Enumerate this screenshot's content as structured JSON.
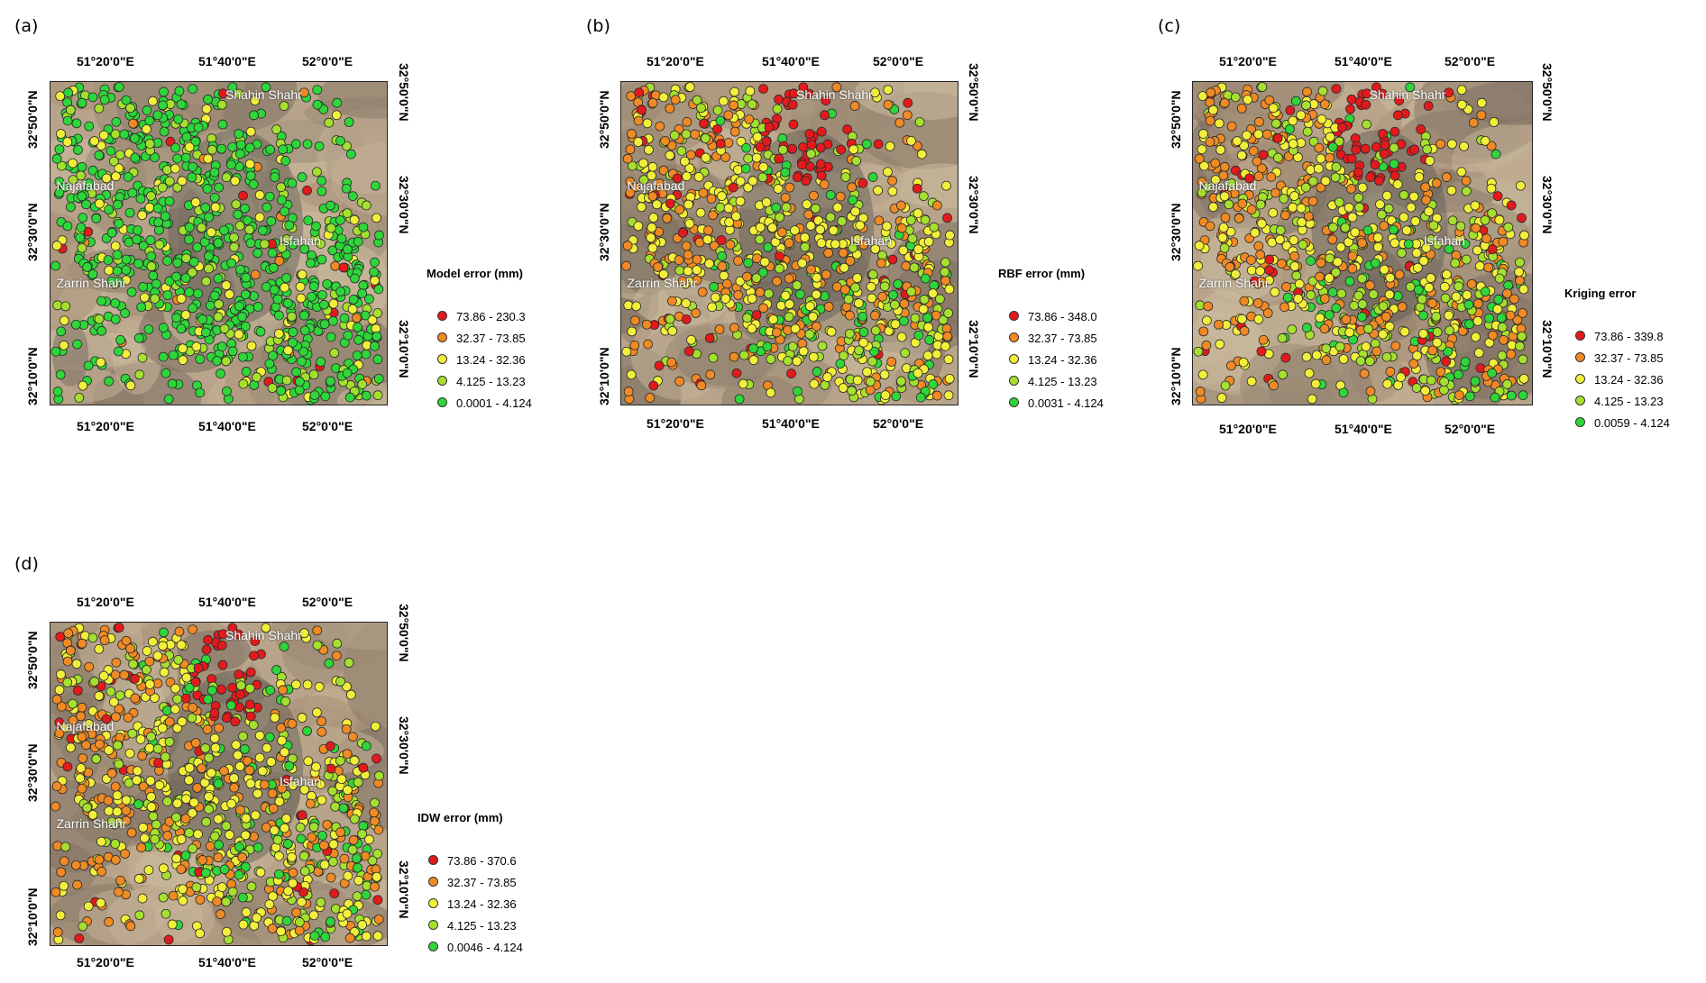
{
  "figure": {
    "axis_labels": {
      "lon_top": [
        "51°20'0\"E",
        "51°40'0\"E",
        "52°0'0\"E"
      ],
      "lon_bottom": [
        "51°20'0\"E",
        "51°40'0\"E",
        "52°0'0\"E"
      ],
      "lat_left": [
        "32°50'0\"N",
        "32°30'0\"N",
        "32°10'0\"N"
      ],
      "lat_right": [
        "32°50'0\"N",
        "32°30'0\"N",
        "32°10'0\"N"
      ]
    },
    "place_names": [
      "Shahin Shahr",
      "Najafabad",
      "Isfahan",
      "Zarrin Shahr"
    ],
    "class_colors": [
      "#e31a1c",
      "#f08a24",
      "#f2ef3a",
      "#a5e02e",
      "#2fd63a"
    ],
    "panels": [
      {
        "letter": "(a)",
        "legend_title": "Model error (mm)",
        "classes": [
          "73.86 - 230.3",
          "32.37 - 73.85",
          "13.24 - 32.36",
          "4.125 - 13.23",
          "0.0001 - 4.124"
        ]
      },
      {
        "letter": "(b)",
        "legend_title": "RBF error (mm)",
        "classes": [
          "73.86 - 348.0",
          "32.37 - 73.85",
          "13.24 - 32.36",
          "4.125 - 13.23",
          "0.0031 - 4.124"
        ]
      },
      {
        "letter": "(c)",
        "legend_title": "Kriging error",
        "classes": [
          "73.86 - 339.8",
          "32.37 - 73.85",
          "13.24 - 32.36",
          "4.125 - 13.23",
          "0.0059 - 4.124"
        ]
      },
      {
        "letter": "(d)",
        "legend_title": "IDW error (mm)",
        "classes": [
          "73.86 - 370.6",
          "32.37 - 73.85",
          "13.24 - 32.36",
          "4.125 - 13.23",
          "0.0046 - 4.124"
        ]
      }
    ]
  }
}
